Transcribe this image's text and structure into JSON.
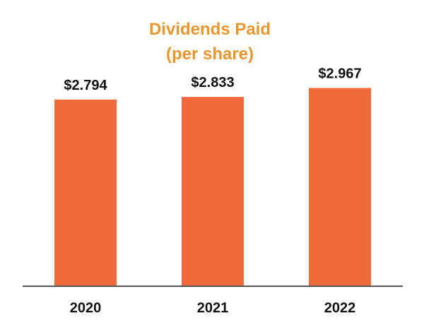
{
  "chart_data": {
    "type": "bar",
    "title": "Dividends Paid",
    "subtitle": "(per share)",
    "categories": [
      "2020",
      "2021",
      "2022"
    ],
    "values": [
      2.794,
      2.833,
      2.967
    ],
    "value_labels": [
      "$2.794",
      "$2.833",
      "$2.967"
    ],
    "ylim": [
      0,
      3.3
    ],
    "grid": false,
    "legend": "none",
    "colors": {
      "bar": "#F26A3B",
      "title": "#E8962E",
      "axis": "#555555",
      "text": "#111111"
    }
  }
}
